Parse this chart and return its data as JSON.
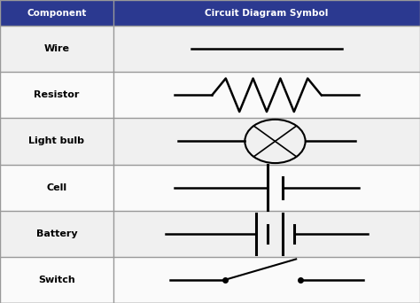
{
  "header_bg": "#2B3990",
  "header_text_color": "#FFFFFF",
  "border_color": "#999999",
  "row_bg_even": "#F0F0F0",
  "row_bg_odd": "#FAFAFA",
  "text_color": "#000000",
  "col1_header": "Component",
  "col2_header": "Circuit Diagram Symbol",
  "components": [
    "Wire",
    "Resistor",
    "Light bulb",
    "Cell",
    "Battery",
    "Switch"
  ],
  "figsize": [
    4.74,
    3.42
  ],
  "dpi": 100
}
